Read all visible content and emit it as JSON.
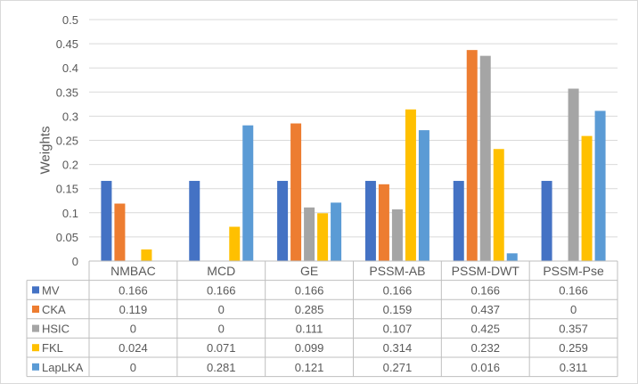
{
  "chart_data": {
    "type": "bar",
    "title": "",
    "xlabel": "",
    "ylabel": "Weights",
    "ylim": [
      0,
      0.5
    ],
    "yticks": [
      "0",
      "0.05",
      "0.1",
      "0.15",
      "0.2",
      "0.25",
      "0.3",
      "0.35",
      "0.4",
      "0.45",
      "0.5"
    ],
    "grid": true,
    "legend": "data-table-left",
    "categories": [
      "NMBAC",
      "MCD",
      "GE",
      "PSSM-AB",
      "PSSM-DWT",
      "PSSM-Pse"
    ],
    "series": [
      {
        "name": "MV",
        "color": "#4472c4",
        "values": [
          0.166,
          0.166,
          0.166,
          0.166,
          0.166,
          0.166
        ],
        "labels": [
          "0.166",
          "0.166",
          "0.166",
          "0.166",
          "0.166",
          "0.166"
        ]
      },
      {
        "name": "CKA",
        "color": "#ed7d31",
        "values": [
          0.119,
          0,
          0.285,
          0.159,
          0.437,
          0
        ],
        "labels": [
          "0.119",
          "0",
          "0.285",
          "0.159",
          "0.437",
          "0"
        ]
      },
      {
        "name": "HSIC",
        "color": "#a5a5a5",
        "values": [
          0,
          0,
          0.111,
          0.107,
          0.425,
          0.357
        ],
        "labels": [
          "0",
          "0",
          "0.111",
          "0.107",
          "0.425",
          "0.357"
        ]
      },
      {
        "name": "FKL",
        "color": "#ffc000",
        "values": [
          0.024,
          0.071,
          0.099,
          0.314,
          0.232,
          0.259
        ],
        "labels": [
          "0.024",
          "0.071",
          "0.099",
          "0.314",
          "0.232",
          "0.259"
        ]
      },
      {
        "name": "LapLKA",
        "color": "#5b9bd5",
        "values": [
          0,
          0.281,
          0.121,
          0.271,
          0.016,
          0.311
        ],
        "labels": [
          "0",
          "0.281",
          "0.121",
          "0.271",
          "0.016",
          "0.311"
        ]
      }
    ]
  }
}
